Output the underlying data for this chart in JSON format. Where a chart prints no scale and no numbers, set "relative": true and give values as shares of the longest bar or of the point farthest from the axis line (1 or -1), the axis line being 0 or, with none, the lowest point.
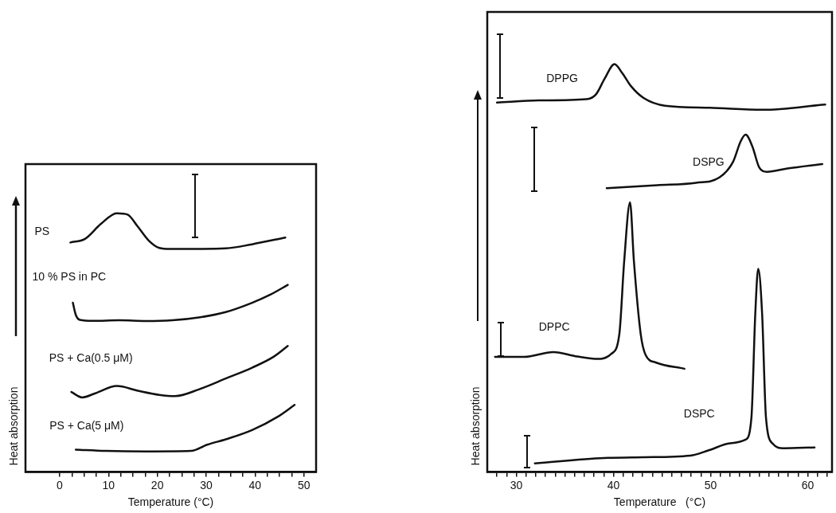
{
  "chart_data": [
    {
      "type": "line",
      "relative": true,
      "xlabel": "Temperature (°C)",
      "ylabel": "Heat absorption",
      "xlim": [
        -7,
        52.5
      ],
      "xticks": [
        0,
        {
          "value": 2.5,
          "label": null
        },
        {
          "value": 5,
          "label": null
        },
        {
          "value": 7.5,
          "label": null
        },
        10,
        {
          "value": 12.5,
          "label": null
        },
        {
          "value": 15,
          "label": null
        },
        {
          "value": 17.5,
          "label": null
        },
        20,
        {
          "value": 22.5,
          "label": null
        },
        {
          "value": 25,
          "label": null
        },
        {
          "value": 27.5,
          "label": null
        },
        30,
        {
          "value": 32.5,
          "label": null
        },
        {
          "value": 35,
          "label": null
        },
        {
          "value": 37.5,
          "label": null
        },
        40,
        {
          "value": 42.5,
          "label": null
        },
        {
          "value": 45,
          "label": null
        },
        {
          "value": 47.5,
          "label": null
        },
        50
      ],
      "series": [
        {
          "name": "PS",
          "color": "#111111",
          "x": [
            2.2,
            5.2,
            8.4,
            11.7,
            13.9,
            16.0,
            18.2,
            20.4,
            22.6,
            28.5,
            34.0,
            39.4,
            46.2
          ],
          "values": [
            0.887,
            0.901,
            0.958,
            1,
            0.995,
            0.948,
            0.895,
            0.866,
            0.862,
            0.862,
            0.864,
            0.88,
            0.906
          ]
        },
        {
          "name": "10 % PS in PC",
          "color": "#111111",
          "x": [
            2.7,
            3.3,
            4.1,
            6.8,
            12.2,
            17.7,
            23.1,
            28.5,
            34.0,
            39.4,
            43.2,
            46.7
          ],
          "values": [
            0.654,
            0.607,
            0.588,
            0.584,
            0.586,
            0.583,
            0.586,
            0.597,
            0.618,
            0.654,
            0.686,
            0.723
          ]
        },
        {
          "name": "PS + Ca(0.5 μM)",
          "color": "#111111",
          "x": [
            2.4,
            4.6,
            7.3,
            11.7,
            16.0,
            20.4,
            23.6,
            28.5,
            34.0,
            39.4,
            43.8,
            46.7
          ],
          "values": [
            0.309,
            0.288,
            0.304,
            0.332,
            0.314,
            0.298,
            0.293,
            0.319,
            0.361,
            0.403,
            0.445,
            0.487
          ]
        },
        {
          "name": "PS + Ca(5 μM)",
          "color": "#111111",
          "x": [
            3.3,
            9.5,
            17.7,
            26.9,
            30.2,
            34.0,
            39.4,
            44.8,
            48.1
          ],
          "values": [
            0.086,
            0.081,
            0.079,
            0.081,
            0.105,
            0.126,
            0.162,
            0.215,
            0.259
          ]
        }
      ]
    },
    {
      "type": "line",
      "relative": true,
      "xlabel": "Temperature   (°C)",
      "ylabel": "Heat absorption",
      "xlim": [
        27,
        62.5
      ],
      "xticks": [
        {
          "value": 28,
          "label": null
        },
        {
          "value": 29,
          "label": null
        },
        30,
        {
          "value": 31,
          "label": null
        },
        {
          "value": 32,
          "label": null
        },
        {
          "value": 33,
          "label": null
        },
        {
          "value": 34,
          "label": null
        },
        {
          "value": 35,
          "label": null
        },
        {
          "value": 36,
          "label": null
        },
        {
          "value": 37,
          "label": null
        },
        {
          "value": 38,
          "label": null
        },
        {
          "value": 39,
          "label": null
        },
        40,
        {
          "value": 41,
          "label": null
        },
        {
          "value": 42,
          "label": null
        },
        {
          "value": 43,
          "label": null
        },
        {
          "value": 44,
          "label": null
        },
        {
          "value": 45,
          "label": null
        },
        {
          "value": 46,
          "label": null
        },
        {
          "value": 47,
          "label": null
        },
        {
          "value": 48,
          "label": null
        },
        {
          "value": 49,
          "label": null
        },
        50,
        {
          "value": 51,
          "label": null
        },
        {
          "value": 52,
          "label": null
        },
        {
          "value": 53,
          "label": null
        },
        {
          "value": 54,
          "label": null
        },
        {
          "value": 55,
          "label": null
        },
        {
          "value": 56,
          "label": null
        },
        {
          "value": 57,
          "label": null
        },
        {
          "value": 58,
          "label": null
        },
        {
          "value": 59,
          "label": null
        },
        60,
        {
          "value": 61,
          "label": null
        },
        {
          "value": 62,
          "label": null
        }
      ],
      "series": [
        {
          "name": "DPPG",
          "color": "#111111",
          "x": [
            28.0,
            32.3,
            37.2,
            38.2,
            39.1,
            40.1,
            40.9,
            41.8,
            43.1,
            45.3,
            49.9,
            55.3,
            61.8
          ],
          "values": [
            0.906,
            0.911,
            0.914,
            0.926,
            0.965,
            1,
            0.978,
            0.946,
            0.917,
            0.898,
            0.893,
            0.888,
            0.901
          ]
        },
        {
          "name": "DSPG",
          "color": "#111111",
          "x": [
            39.3,
            44.5,
            48.5,
            50.9,
            52.3,
            53.1,
            53.6,
            54.3,
            55.0,
            55.8,
            57.9,
            61.5
          ],
          "values": [
            0.696,
            0.703,
            0.709,
            0.722,
            0.76,
            0.811,
            0.827,
            0.798,
            0.747,
            0.736,
            0.744,
            0.755
          ]
        },
        {
          "name": "DPPC",
          "color": "#111111",
          "x": [
            27.8,
            30.8,
            33.8,
            36.25,
            38.4,
            39.8,
            40.6,
            41.1,
            41.7,
            42.1,
            42.8,
            43.3,
            44.4,
            47.3
          ],
          "values": [
            0.282,
            0.282,
            0.294,
            0.283,
            0.277,
            0.29,
            0.338,
            0.517,
            0.661,
            0.517,
            0.338,
            0.287,
            0.268,
            0.253
          ]
        },
        {
          "name": "DSPC",
          "color": "#111111",
          "x": [
            31.9,
            39.0,
            43.0,
            47.9,
            49.8,
            52.0,
            53.6,
            54.2,
            54.6,
            54.9,
            55.3,
            55.7,
            56.4,
            57.5,
            60.7
          ],
          "values": [
            0.021,
            0.034,
            0.036,
            0.04,
            0.053,
            0.07,
            0.079,
            0.133,
            0.389,
            0.498,
            0.389,
            0.133,
            0.069,
            0.058,
            0.06
          ]
        }
      ]
    }
  ]
}
